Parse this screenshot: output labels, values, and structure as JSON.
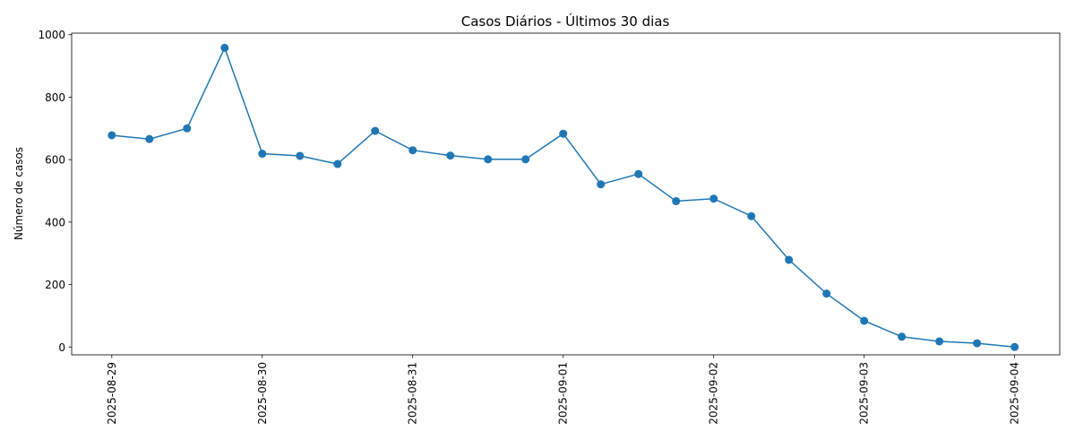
{
  "chart_data": {
    "type": "line",
    "title": "Casos Diários - Últimos 30 dias",
    "xlabel": "",
    "ylabel": "Número de casos",
    "ylim": [
      -25,
      1005
    ],
    "xlim": [
      "2025-08-28T17:36",
      "2025-09-04T07:12"
    ],
    "grid": false,
    "legend": "none",
    "line_color": "#1f77b4",
    "marker": "circle",
    "y_ticks": [
      0,
      200,
      400,
      600,
      800,
      1000
    ],
    "x_ticks": [
      "2025-08-29",
      "2025-08-30",
      "2025-08-31",
      "2025-09-01",
      "2025-09-02",
      "2025-09-03",
      "2025-09-04"
    ],
    "series": [
      {
        "x": [
          "2025-08-29T00:00",
          "2025-08-29T06:00",
          "2025-08-29T12:00",
          "2025-08-29T18:00",
          "2025-08-30T00:00",
          "2025-08-30T06:00",
          "2025-08-30T12:00",
          "2025-08-30T18:00",
          "2025-08-31T00:00",
          "2025-08-31T06:00",
          "2025-08-31T12:00",
          "2025-08-31T18:00",
          "2025-09-01T00:00",
          "2025-09-01T06:00",
          "2025-09-01T12:00",
          "2025-09-01T18:00",
          "2025-09-02T00:00",
          "2025-09-02T06:00",
          "2025-09-02T12:00",
          "2025-09-02T18:00",
          "2025-09-03T00:00",
          "2025-09-03T06:00",
          "2025-09-03T12:00",
          "2025-09-03T18:00",
          "2025-09-04T00:00"
        ],
        "values": [
          678,
          666,
          700,
          958,
          619,
          612,
          586,
          692,
          630,
          613,
          601,
          601,
          683,
          521,
          554,
          467,
          475,
          419,
          279,
          171,
          84,
          33,
          18,
          12,
          0
        ]
      }
    ]
  }
}
